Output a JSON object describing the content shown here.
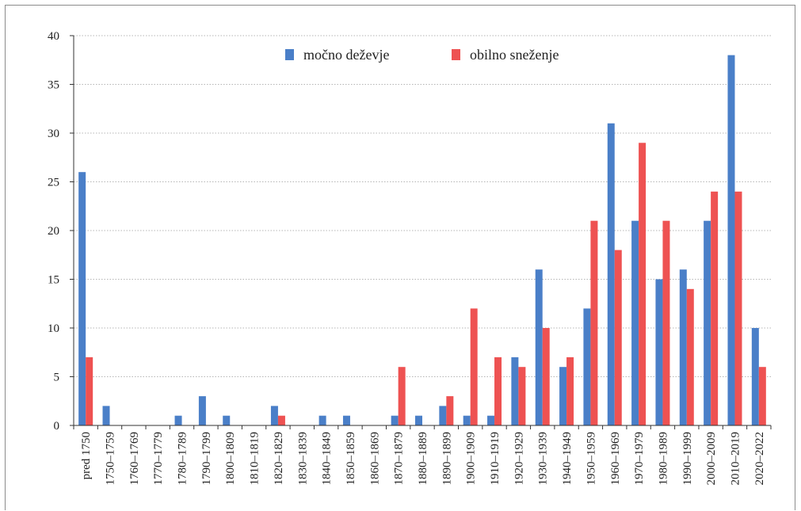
{
  "chart_data": {
    "type": "bar",
    "categories": [
      "pred 1750",
      "1750–1759",
      "1760–1769",
      "1770–1779",
      "1780–1789",
      "1790–1799",
      "1800–1809",
      "1810–1819",
      "1820–1829",
      "1830–1839",
      "1840–1849",
      "1850–1859",
      "1860–1869",
      "1870–1879",
      "1880–1889",
      "1890–1899",
      "1900–1909",
      "1910–1919",
      "1920–1929",
      "1930–1939",
      "1940–1949",
      "1950–1959",
      "1960–1969",
      "1970–1979",
      "1980–1989",
      "1990–1999",
      "2000–2009",
      "2010–2019",
      "2020–2022"
    ],
    "series": [
      {
        "name": "močno deževje",
        "color": "#4a7fc8",
        "values": [
          26,
          2,
          0,
          0,
          1,
          3,
          1,
          0,
          2,
          0,
          1,
          1,
          0,
          1,
          1,
          2,
          1,
          1,
          7,
          16,
          6,
          12,
          31,
          21,
          15,
          16,
          21,
          38,
          10
        ]
      },
      {
        "name": "obilno sneženje",
        "color": "#ee5252",
        "values": [
          7,
          0,
          0,
          0,
          0,
          0,
          0,
          0,
          1,
          0,
          0,
          0,
          0,
          6,
          0,
          3,
          12,
          7,
          6,
          10,
          7,
          21,
          18,
          29,
          21,
          14,
          24,
          24,
          6
        ]
      }
    ],
    "ylim": [
      0,
      40
    ],
    "yticks": [
      0,
      5,
      10,
      15,
      20,
      25,
      30,
      35,
      40
    ],
    "grid": true,
    "legend_position": "top-center"
  }
}
